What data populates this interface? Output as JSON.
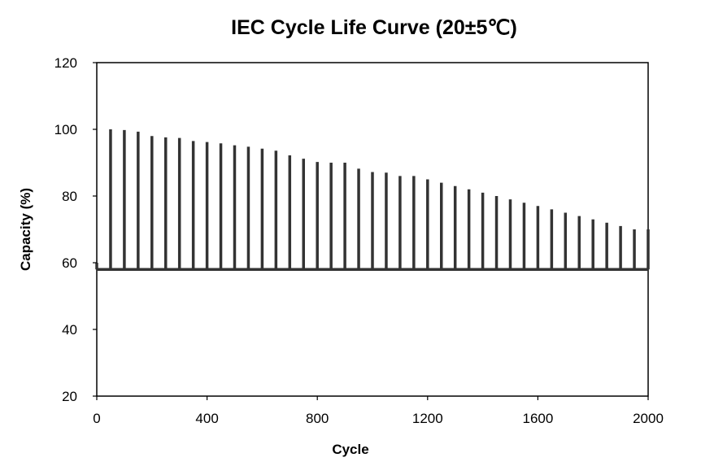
{
  "chart_data": {
    "type": "line",
    "title": "IEC Cycle Life Curve (20±5℃)",
    "xlabel": "Cycle",
    "ylabel": "Capacity (%)",
    "xlim": [
      0,
      2000
    ],
    "ylim": [
      20,
      120
    ],
    "x_ticks": [
      "0",
      "400",
      "800",
      "1200",
      "1600",
      "2000"
    ],
    "y_ticks": [
      "20",
      "40",
      "60",
      "80",
      "100",
      "120"
    ],
    "grid": false,
    "legend": "none",
    "baseline": 58,
    "line_color": "#333333",
    "series": [
      {
        "x": [
          0,
          50,
          100,
          150,
          200,
          250,
          300,
          350,
          400,
          450,
          500,
          550,
          600,
          650,
          700,
          750,
          800,
          850,
          900,
          950,
          1000,
          1050,
          1100,
          1150,
          1200,
          1250,
          1300,
          1350,
          1400,
          1450,
          1500,
          1550,
          1600,
          1650,
          1700,
          1750,
          1800,
          1850,
          1900,
          1950,
          2000
        ],
        "values": [
          60,
          100,
          99.8,
          99.3,
          98,
          97.6,
          97.4,
          96.5,
          96.2,
          95.8,
          95.2,
          94.8,
          94.2,
          93.6,
          92.2,
          91.2,
          90.2,
          90,
          90,
          88.2,
          87.2,
          87,
          86,
          86,
          85,
          84,
          83,
          82,
          81,
          80,
          79,
          78,
          77,
          76,
          75,
          74,
          73,
          72,
          71,
          70,
          70
        ]
      }
    ]
  }
}
